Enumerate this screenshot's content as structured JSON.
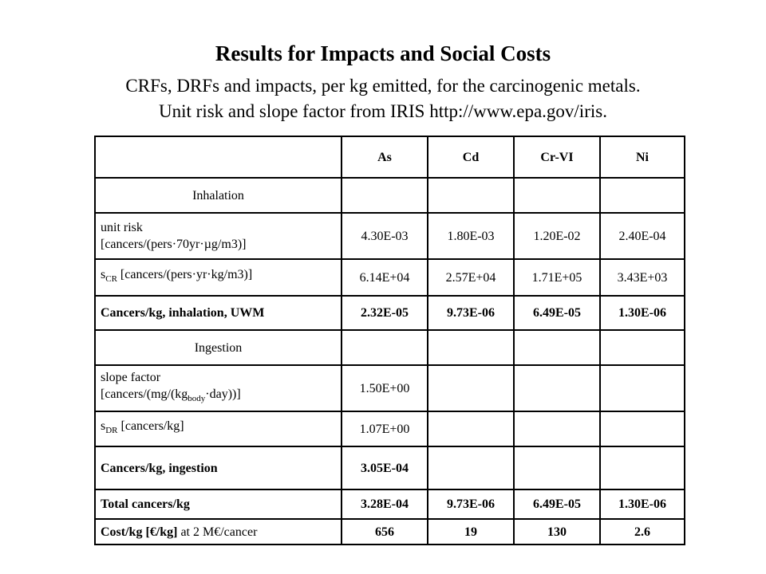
{
  "title": "Results for Impacts and Social Costs",
  "subtitle_line1": "CRFs, DRFs and impacts, per kg emitted, for the carcinogenic metals.",
  "subtitle_line2": "Unit risk and slope factor from IRIS  http://www.epa.gov/iris.",
  "table": {
    "headers": [
      "",
      "As",
      "Cd",
      "Cr-VI",
      "Ni"
    ],
    "inhalation_label": "Inhalation",
    "unit_risk_label_line1": "unit risk",
    "unit_risk_label_line2": "[cancers/(pers·70yr·µg/m3)]",
    "unit_risk_values": [
      "4.30E-03",
      "1.80E-03",
      "1.20E-02",
      "2.40E-04"
    ],
    "scr_label_s": "s",
    "scr_label_sub": "CR",
    "scr_label_rest": " [cancers/(pers·yr·kg/m3)]",
    "scr_values": [
      "6.14E+04",
      "2.57E+04",
      "1.71E+05",
      "3.43E+03"
    ],
    "cancers_inhalation_label": "Cancers/kg,  inhalation, UWM",
    "cancers_inhalation_values": [
      "2.32E-05",
      "9.73E-06",
      "6.49E-05",
      "1.30E-06"
    ],
    "ingestion_label": "Ingestion",
    "slope_label_line1": "slope factor",
    "slope_label_line2_a": "[cancers/(mg/(kg",
    "slope_label_line2_sub": "body",
    "slope_label_line2_b": "·day))]",
    "slope_values": [
      "1.50E+00",
      "",
      "",
      ""
    ],
    "sdr_label_s": "s",
    "sdr_label_sub": "DR",
    "sdr_label_rest": " [cancers/kg]",
    "sdr_values": [
      "1.07E+00",
      "",
      "",
      ""
    ],
    "cancers_ingestion_label": "Cancers/kg,  ingestion",
    "cancers_ingestion_values": [
      "3.05E-04",
      "",
      "",
      ""
    ],
    "total_label": "Total cancers/kg",
    "total_values": [
      "3.28E-04",
      "9.73E-06",
      "6.49E-05",
      "1.30E-06"
    ],
    "cost_label_bold": "Cost/kg [€/kg]",
    "cost_label_normal": " at 2 M€/cancer",
    "cost_values": [
      "656",
      "19",
      "130",
      "2.6"
    ]
  }
}
